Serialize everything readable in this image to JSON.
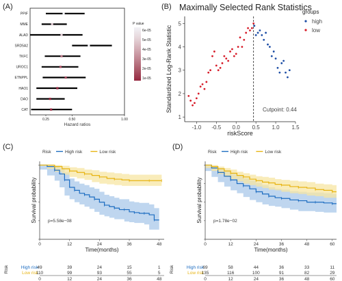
{
  "panel_labels": {
    "a": "(A)",
    "b": "(B)",
    "c": "(C)",
    "d": "(D)"
  },
  "chart_data": [
    {
      "panel": "A",
      "type": "forest",
      "xlabel": "Hazard ratios",
      "xlim": [
        0.1,
        1.0
      ],
      "xticks": [
        {
          "v": 0.25,
          "label": "0.25"
        },
        {
          "v": 0.5,
          "label": "0.50"
        },
        {
          "v": 1.0,
          "label": "1.00"
        }
      ],
      "genes": [
        {
          "name": "PPIF",
          "hr": 0.42,
          "lo": 0.25,
          "hi": 0.62,
          "p": 6e-05
        },
        {
          "name": "MME",
          "hr": 0.31,
          "lo": 0.21,
          "hi": 0.45,
          "p": 5e-05
        },
        {
          "name": "ALAD",
          "hr": 0.4,
          "lo": 0.1,
          "hi": 0.6,
          "p": 5e-05
        },
        {
          "name": "SRD5A2",
          "hr": 0.66,
          "lo": 0.5,
          "hi": 0.88,
          "p": 6e-05
        },
        {
          "name": "TKFC",
          "hr": 0.4,
          "lo": 0.24,
          "hi": 0.58,
          "p": 3e-05
        },
        {
          "name": "UROC1",
          "hr": 0.39,
          "lo": 0.21,
          "hi": 0.56,
          "p": 2e-05
        },
        {
          "name": "ETNPPL",
          "hr": 0.44,
          "lo": 0.22,
          "hi": 0.63,
          "p": 2e-05
        },
        {
          "name": "HAO1",
          "hr": 0.36,
          "lo": 0.16,
          "hi": 0.55,
          "p": 1e-05
        },
        {
          "name": "DAO",
          "hr": 0.29,
          "lo": 0.16,
          "hi": 0.43,
          "p": 1e-05
        },
        {
          "name": "CAT",
          "hr": 0.3,
          "lo": 0.11,
          "hi": 0.5,
          "p": 1e-05
        }
      ],
      "legend": {
        "title": "P value",
        "labels": [
          "6e-05",
          "5e-05",
          "4e-05",
          "3e-05",
          "2e-05",
          "1e-05"
        ],
        "colors": [
          "#f2f2f6",
          "#e6d6da",
          "#d4aeb6",
          "#c08490",
          "#aa5868",
          "#962840"
        ]
      }
    },
    {
      "panel": "B",
      "type": "scatter",
      "title": "Maximally Selected Rank Statistics",
      "xlabel": "riskScore",
      "ylabel": "Standardized Log-Rank Statistic",
      "xlim": [
        -1.3,
        1.5
      ],
      "ylim": [
        0.8,
        5.3
      ],
      "xticks": [
        -1.0,
        -0.5,
        0.0,
        0.5,
        1.0,
        1.5
      ],
      "yticks": [
        1,
        2,
        3,
        4,
        5
      ],
      "cutpoint": 0.44,
      "cutpoint_label": "Cutpoint: 0.44",
      "legend_title": "groups",
      "legend_entries": [
        {
          "label": "high",
          "color": "#1f4fa6"
        },
        {
          "label": "low",
          "color": "#d71d2a"
        }
      ],
      "series": [
        {
          "name": "low",
          "x": [
            -1.2,
            -1.15,
            -1.1,
            -1.05,
            -1.0,
            -0.95,
            -0.9,
            -0.85,
            -0.8,
            -0.75,
            -0.7,
            -0.65,
            -0.6,
            -0.55,
            -0.5,
            -0.45,
            -0.4,
            -0.35,
            -0.3,
            -0.25,
            -0.2,
            -0.15,
            -0.1,
            -0.05,
            0.0,
            0.05,
            0.1,
            0.15,
            0.2,
            0.25,
            0.3,
            0.35,
            0.4,
            0.44
          ],
          "y": [
            1.9,
            1.7,
            1.5,
            1.6,
            1.8,
            2.0,
            2.3,
            2.4,
            2.2,
            2.5,
            2.9,
            3.0,
            3.6,
            3.8,
            3.2,
            3.0,
            3.1,
            3.3,
            3.6,
            3.5,
            3.4,
            3.8,
            3.9,
            3.6,
            3.7,
            4.0,
            4.4,
            4.0,
            4.3,
            4.6,
            4.8,
            4.7,
            4.8,
            5.0
          ]
        },
        {
          "name": "high",
          "x": [
            0.46,
            0.5,
            0.55,
            0.6,
            0.65,
            0.7,
            0.75,
            0.8,
            0.85,
            0.9,
            0.95,
            1.0,
            1.05,
            1.1,
            1.15,
            1.2,
            1.25,
            1.3,
            1.35
          ],
          "y": [
            4.9,
            4.5,
            4.6,
            4.7,
            4.5,
            4.3,
            4.6,
            4.1,
            4.0,
            3.6,
            3.8,
            3.5,
            3.1,
            2.9,
            3.3,
            3.4,
            2.9,
            2.7,
            3.0
          ]
        }
      ]
    },
    {
      "panel": "C",
      "type": "line",
      "ylabel": "Survival probability",
      "xlabel": "Time(months)",
      "xlim": [
        0,
        50
      ],
      "ylim": [
        0,
        1.05
      ],
      "xticks": [
        0,
        12,
        24,
        36,
        48
      ],
      "yticks": [
        {
          "v": 0.0,
          "label": "0.00"
        },
        {
          "v": 0.25,
          "label": "0.25"
        },
        {
          "v": 0.5,
          "label": "0.50"
        },
        {
          "v": 0.75,
          "label": "0.75"
        },
        {
          "v": 1.0,
          "label": "1.00"
        }
      ],
      "legend_title": "Risk",
      "pvalue": "p=5.58e−08",
      "series": [
        {
          "name": "High risk",
          "color": "#1c6cc0",
          "band": "#a9c8ea",
          "x": [
            0,
            3,
            6,
            8,
            10,
            12,
            14,
            16,
            18,
            20,
            22,
            24,
            26,
            28,
            30,
            32,
            34,
            36,
            38,
            40,
            42,
            44,
            46,
            48
          ],
          "y": [
            1.0,
            0.98,
            0.93,
            0.88,
            0.8,
            0.7,
            0.66,
            0.62,
            0.6,
            0.57,
            0.54,
            0.5,
            0.46,
            0.44,
            0.42,
            0.4,
            0.4,
            0.37,
            0.36,
            0.35,
            0.35,
            0.33,
            0.26,
            0.26
          ],
          "lower": [
            1.0,
            0.94,
            0.86,
            0.79,
            0.7,
            0.59,
            0.54,
            0.5,
            0.47,
            0.44,
            0.41,
            0.37,
            0.33,
            0.31,
            0.29,
            0.27,
            0.27,
            0.24,
            0.23,
            0.22,
            0.22,
            0.2,
            0.13,
            0.13
          ],
          "upper": [
            1.0,
            1.0,
            0.99,
            0.96,
            0.9,
            0.82,
            0.78,
            0.75,
            0.73,
            0.7,
            0.68,
            0.64,
            0.6,
            0.58,
            0.56,
            0.54,
            0.54,
            0.51,
            0.5,
            0.49,
            0.49,
            0.47,
            0.42,
            0.42
          ]
        },
        {
          "name": "Low risk",
          "color": "#e7b310",
          "band": "#f7e6a3",
          "x": [
            0,
            3,
            6,
            9,
            12,
            15,
            18,
            21,
            24,
            27,
            30,
            33,
            36,
            40,
            44,
            48,
            49
          ],
          "y": [
            1.0,
            1.0,
            0.98,
            0.95,
            0.92,
            0.9,
            0.88,
            0.86,
            0.84,
            0.82,
            0.81,
            0.8,
            0.79,
            0.79,
            0.79,
            0.79,
            0.79
          ],
          "lower": [
            1.0,
            0.99,
            0.95,
            0.91,
            0.87,
            0.84,
            0.82,
            0.8,
            0.77,
            0.75,
            0.74,
            0.73,
            0.72,
            0.72,
            0.72,
            0.72,
            0.72
          ],
          "upper": [
            1.0,
            1.0,
            1.0,
            0.99,
            0.97,
            0.96,
            0.94,
            0.93,
            0.91,
            0.9,
            0.89,
            0.88,
            0.87,
            0.87,
            0.87,
            0.87,
            0.87
          ]
        }
      ],
      "risk_table": {
        "title": "Risk",
        "rows": [
          {
            "label": "High risk",
            "color": "#1c6cc0",
            "counts": [
              "49",
              "39",
              "24",
              "15",
              "1"
            ]
          },
          {
            "label": "Low risk",
            "color": "#e7b310",
            "counts": [
              "110",
              "99",
              "93",
              "55",
              "5"
            ]
          }
        ],
        "ticks": [
          0,
          12,
          24,
          36,
          48
        ]
      }
    },
    {
      "panel": "D",
      "type": "line",
      "ylabel": "Survival probability",
      "xlabel": "Time(months)",
      "xlim": [
        0,
        62
      ],
      "ylim": [
        0,
        1.05
      ],
      "xticks": [
        0,
        12,
        24,
        36,
        48,
        60
      ],
      "yticks": [
        {
          "v": 0.0,
          "label": "0.00"
        },
        {
          "v": 0.25,
          "label": "0.25"
        },
        {
          "v": 0.5,
          "label": "0.50"
        },
        {
          "v": 0.75,
          "label": "0.75"
        },
        {
          "v": 1.0,
          "label": "1.00"
        }
      ],
      "legend_title": "Risk",
      "pvalue": "p=1.78e−02",
      "series": [
        {
          "name": "High risk",
          "color": "#1c6cc0",
          "band": "#a9c8ea",
          "x": [
            0,
            3,
            6,
            9,
            12,
            15,
            18,
            21,
            24,
            27,
            30,
            33,
            36,
            40,
            44,
            48,
            52,
            56,
            60,
            62
          ],
          "y": [
            1.0,
            0.96,
            0.9,
            0.85,
            0.8,
            0.75,
            0.72,
            0.68,
            0.64,
            0.61,
            0.58,
            0.56,
            0.55,
            0.53,
            0.52,
            0.5,
            0.5,
            0.49,
            0.48,
            0.48
          ],
          "lower": [
            1.0,
            0.92,
            0.84,
            0.77,
            0.71,
            0.66,
            0.62,
            0.57,
            0.53,
            0.5,
            0.47,
            0.45,
            0.44,
            0.42,
            0.4,
            0.38,
            0.38,
            0.37,
            0.36,
            0.36
          ],
          "upper": [
            1.0,
            0.99,
            0.96,
            0.93,
            0.89,
            0.85,
            0.82,
            0.79,
            0.76,
            0.73,
            0.7,
            0.68,
            0.67,
            0.65,
            0.64,
            0.63,
            0.63,
            0.62,
            0.61,
            0.61
          ]
        },
        {
          "name": "Low risk",
          "color": "#e7b310",
          "band": "#f7e6a3",
          "x": [
            0,
            3,
            6,
            9,
            12,
            15,
            18,
            21,
            24,
            27,
            30,
            33,
            36,
            40,
            44,
            48,
            52,
            56,
            60,
            62
          ],
          "y": [
            1.0,
            0.98,
            0.95,
            0.92,
            0.89,
            0.86,
            0.84,
            0.81,
            0.79,
            0.77,
            0.76,
            0.74,
            0.73,
            0.71,
            0.7,
            0.69,
            0.67,
            0.66,
            0.64,
            0.64
          ],
          "lower": [
            1.0,
            0.96,
            0.92,
            0.88,
            0.84,
            0.81,
            0.78,
            0.75,
            0.73,
            0.71,
            0.69,
            0.67,
            0.66,
            0.64,
            0.62,
            0.61,
            0.59,
            0.58,
            0.56,
            0.56
          ],
          "upper": [
            1.0,
            1.0,
            0.98,
            0.96,
            0.94,
            0.91,
            0.89,
            0.87,
            0.85,
            0.84,
            0.83,
            0.81,
            0.8,
            0.79,
            0.78,
            0.77,
            0.75,
            0.74,
            0.73,
            0.73
          ]
        }
      ],
      "risk_table": {
        "title": "Risk",
        "rows": [
          {
            "label": "High risk",
            "color": "#1c6cc0",
            "counts": [
              "69",
              "58",
              "44",
              "36",
              "33",
              "11"
            ]
          },
          {
            "label": "Low risk",
            "color": "#e7b310",
            "counts": [
              "135",
              "116",
              "100",
              "91",
              "82",
              "29"
            ]
          }
        ],
        "ticks": [
          0,
          12,
          24,
          36,
          48,
          60
        ]
      }
    }
  ]
}
